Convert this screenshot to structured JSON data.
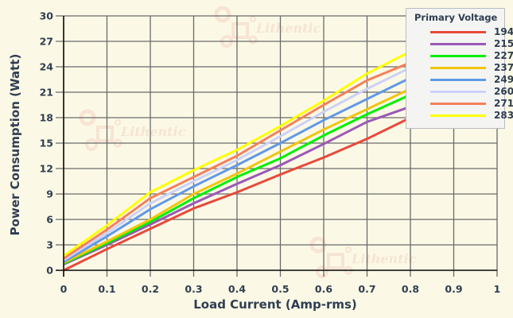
{
  "chart_data": {
    "type": "line",
    "title": "",
    "xlabel": "Load Current (Amp-rms)",
    "ylabel": "Power Consumption (Watt)",
    "xlim": [
      0,
      1
    ],
    "ylim": [
      0,
      30
    ],
    "x_ticks": [
      "0",
      "0.1",
      "0.2",
      "0.3",
      "0.4",
      "0.5",
      "0.6",
      "0.7",
      "0.8",
      "0.9",
      "1"
    ],
    "y_ticks": [
      "0",
      "3",
      "6",
      "9",
      "12",
      "15",
      "18",
      "21",
      "24",
      "27",
      "30"
    ],
    "grid": true,
    "legend_title": "Primary Voltage",
    "legend_position": "top-right (inside)",
    "x": [
      0,
      0.1,
      0.2,
      0.3,
      0.4,
      0.5,
      0.6,
      0.7,
      0.8
    ],
    "series": [
      {
        "name": "194",
        "color": "#e8493b",
        "values": [
          0.0,
          2.5,
          4.9,
          7.3,
          9.2,
          11.3,
          13.3,
          15.5,
          18.0
        ]
      },
      {
        "name": "215",
        "color": "#9b59b6",
        "values": [
          0.7,
          3.0,
          5.4,
          7.9,
          10.2,
          12.4,
          14.9,
          17.5,
          19.3
        ]
      },
      {
        "name": "227",
        "color": "#00f000",
        "values": [
          0.8,
          3.2,
          5.7,
          8.5,
          11.0,
          13.2,
          15.9,
          18.4,
          20.7
        ]
      },
      {
        "name": "237",
        "color": "#f1c40f",
        "values": [
          0.9,
          3.4,
          6.0,
          9.0,
          11.4,
          14.0,
          16.6,
          19.0,
          21.4
        ]
      },
      {
        "name": "249",
        "color": "#6199e8",
        "values": [
          1.0,
          4.0,
          7.2,
          9.9,
          12.4,
          15.0,
          17.7,
          20.2,
          22.7
        ]
      },
      {
        "name": "260",
        "color": "#cdd0f8",
        "values": [
          1.2,
          4.4,
          7.9,
          10.5,
          13.0,
          15.8,
          18.7,
          21.4,
          23.9
        ]
      },
      {
        "name": "271",
        "color": "#f5805a",
        "values": [
          1.4,
          4.8,
          8.5,
          11.0,
          13.5,
          16.5,
          19.5,
          22.4,
          24.5
        ]
      },
      {
        "name": "283",
        "color": "#ffff00",
        "values": [
          1.7,
          5.3,
          9.2,
          11.8,
          14.2,
          17.0,
          20.0,
          23.2,
          25.8
        ]
      }
    ]
  },
  "watermark": {
    "text": "Lithentic"
  },
  "colors": {
    "background": "#fbf9e6",
    "grid": "#6a6a6a",
    "axis": "#111111",
    "text": "#2f3e52",
    "legend_bg": "#f4f5f3",
    "legend_border": "#b9bcc0"
  }
}
